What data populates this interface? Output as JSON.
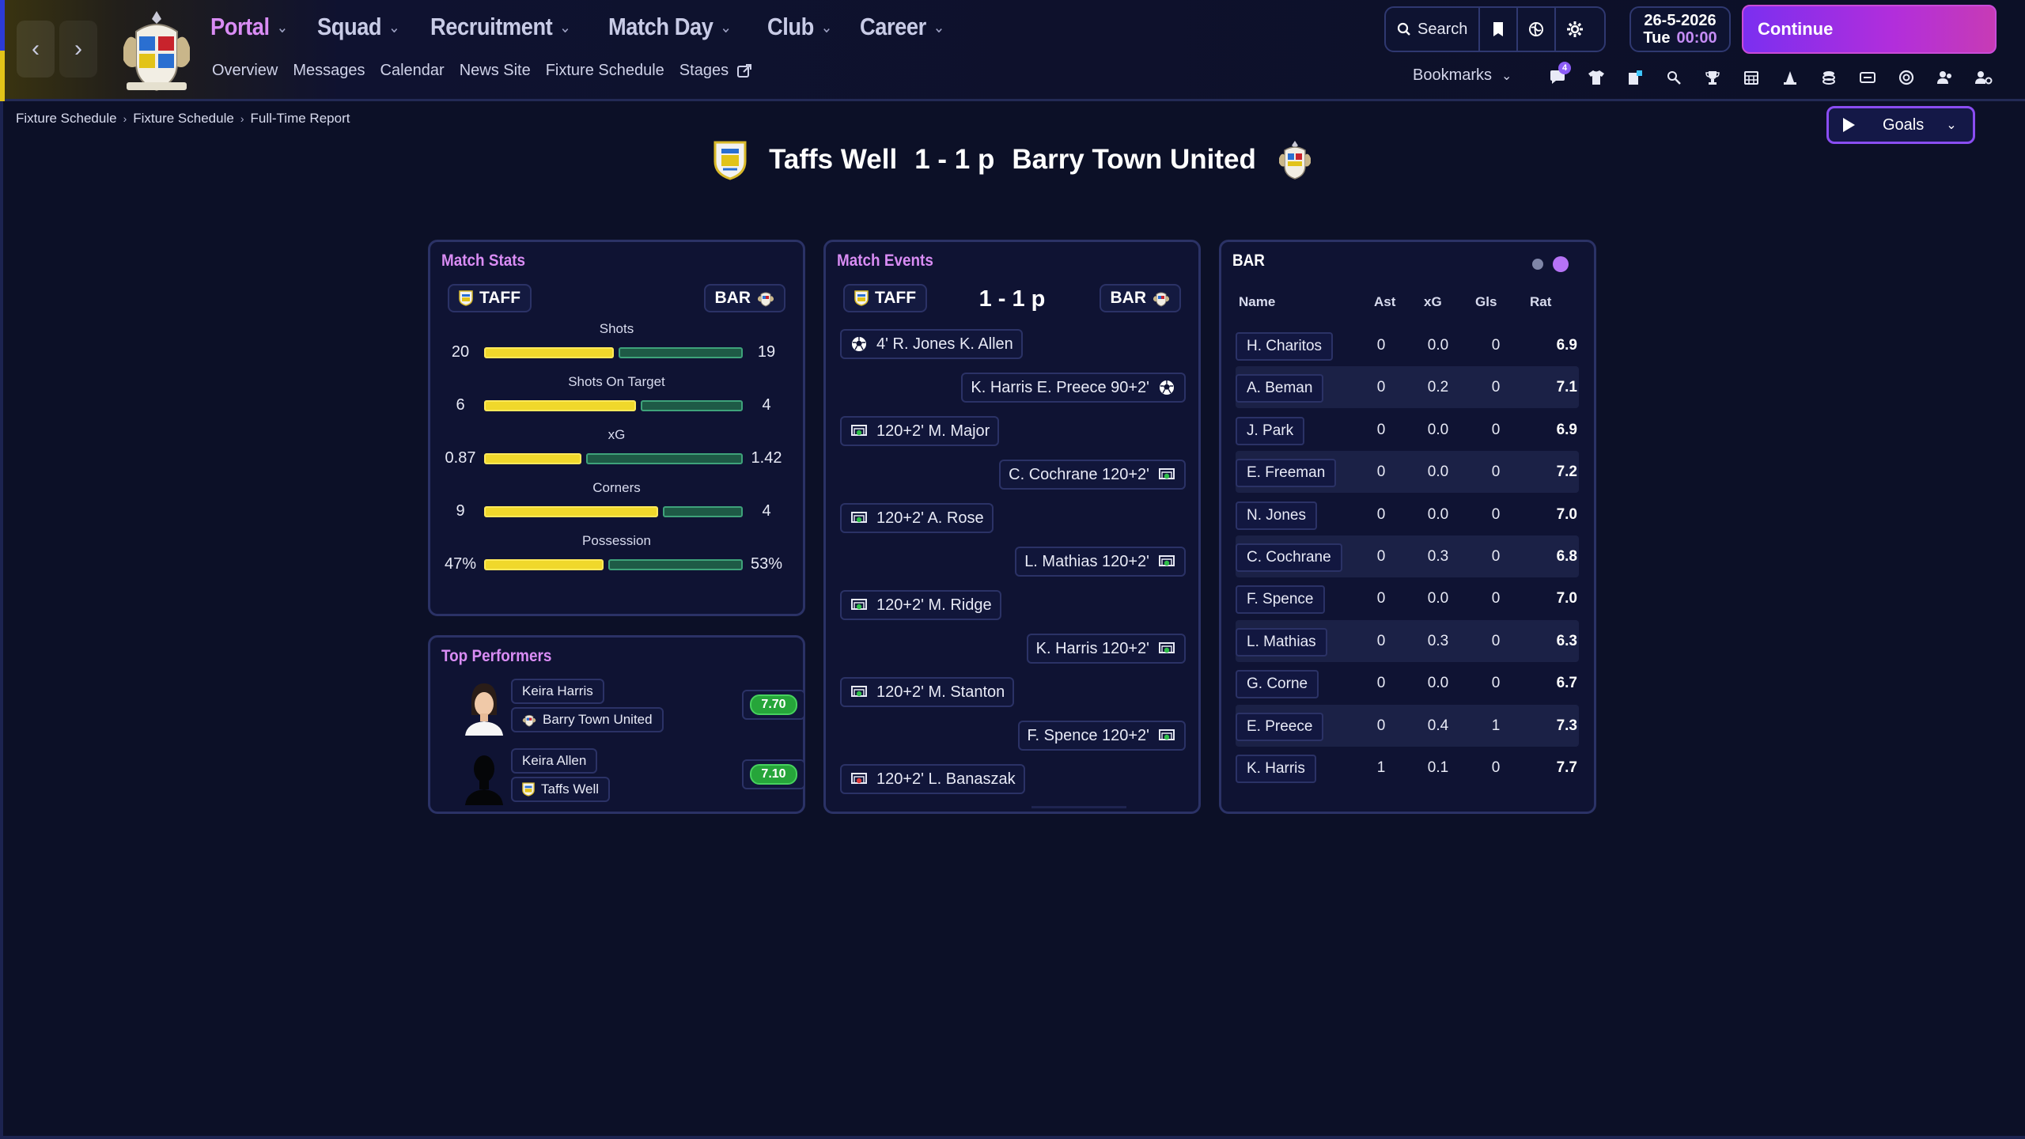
{
  "nav": {
    "main": [
      {
        "label": "Portal",
        "active": true
      },
      {
        "label": "Squad",
        "active": false
      },
      {
        "label": "Recruitment",
        "active": false
      },
      {
        "label": "Match Day",
        "active": false
      },
      {
        "label": "Club",
        "active": false
      },
      {
        "label": "Career",
        "active": false
      }
    ],
    "sub": [
      "Overview",
      "Messages",
      "Calendar",
      "News Site",
      "Fixture Schedule",
      "Stages"
    ],
    "search_label": "Search",
    "date": "26-5-2026",
    "day": "Tue",
    "time": "00:00",
    "continue_label": "Continue",
    "bookmarks_label": "Bookmarks",
    "inbox_badge": "4"
  },
  "breadcrumb": [
    "Fixture Schedule",
    "Fixture Schedule",
    "Full-Time Report"
  ],
  "goals_dropdown": "Goals",
  "match": {
    "home_team": "Taffs Well",
    "away_team": "Barry Town United",
    "score": "1 - 1 p",
    "home_short": "TAFF",
    "away_short": "BAR"
  },
  "match_stats": {
    "title": "Match Stats",
    "stats": [
      {
        "label": "Shots",
        "home": "20",
        "away": "19",
        "home_share": 0.51
      },
      {
        "label": "Shots On Target",
        "home": "6",
        "away": "4",
        "home_share": 0.6
      },
      {
        "label": "xG",
        "home": "0.87",
        "away": "1.42",
        "home_share": 0.38
      },
      {
        "label": "Corners",
        "home": "9",
        "away": "4",
        "home_share": 0.69
      },
      {
        "label": "Possession",
        "home": "47%",
        "away": "53%",
        "home_share": 0.47
      }
    ]
  },
  "top_performers": {
    "title": "Top Performers",
    "players": [
      {
        "name": "Keira Harris",
        "club": "Barry Town United",
        "rating": "7.70"
      },
      {
        "name": "Keira Allen",
        "club": "Taffs Well",
        "rating": "7.10"
      }
    ]
  },
  "match_events": {
    "title": "Match Events",
    "events": [
      {
        "side": "home",
        "type": "goal",
        "text": "4' R. Jones K. Allen"
      },
      {
        "side": "away",
        "type": "goal",
        "text": "K. Harris E. Preece 90+2'"
      },
      {
        "side": "home",
        "type": "pen-scored",
        "text": "120+2' M. Major"
      },
      {
        "side": "away",
        "type": "pen-scored",
        "text": "C. Cochrane 120+2'"
      },
      {
        "side": "home",
        "type": "pen-scored",
        "text": "120+2' A. Rose"
      },
      {
        "side": "away",
        "type": "pen-scored",
        "text": "L. Mathias 120+2'"
      },
      {
        "side": "home",
        "type": "pen-scored",
        "text": "120+2' M. Ridge"
      },
      {
        "side": "away",
        "type": "pen-scored",
        "text": "K. Harris 120+2'"
      },
      {
        "side": "home",
        "type": "pen-scored",
        "text": "120+2' M. Stanton"
      },
      {
        "side": "away",
        "type": "pen-scored",
        "text": "F. Spence 120+2'"
      },
      {
        "side": "home",
        "type": "pen-missed",
        "text": "120+2' L. Banaszak"
      }
    ]
  },
  "player_table": {
    "title": "BAR",
    "columns": [
      "Name",
      "Ast",
      "xG",
      "Gls",
      "Rat"
    ],
    "rows": [
      {
        "name": "H. Charitos",
        "ast": "0",
        "xg": "0.0",
        "gls": "0",
        "rat": "6.9"
      },
      {
        "name": "A. Beman",
        "ast": "0",
        "xg": "0.2",
        "gls": "0",
        "rat": "7.1"
      },
      {
        "name": "J. Park",
        "ast": "0",
        "xg": "0.0",
        "gls": "0",
        "rat": "6.9"
      },
      {
        "name": "E. Freeman",
        "ast": "0",
        "xg": "0.0",
        "gls": "0",
        "rat": "7.2"
      },
      {
        "name": "N. Jones",
        "ast": "0",
        "xg": "0.0",
        "gls": "0",
        "rat": "7.0"
      },
      {
        "name": "C. Cochrane",
        "ast": "0",
        "xg": "0.3",
        "gls": "0",
        "rat": "6.8"
      },
      {
        "name": "F. Spence",
        "ast": "0",
        "xg": "0.0",
        "gls": "0",
        "rat": "7.0"
      },
      {
        "name": "L. Mathias",
        "ast": "0",
        "xg": "0.3",
        "gls": "0",
        "rat": "6.3"
      },
      {
        "name": "G. Corne",
        "ast": "0",
        "xg": "0.0",
        "gls": "0",
        "rat": "6.7"
      },
      {
        "name": "E. Preece",
        "ast": "0",
        "xg": "0.4",
        "gls": "1",
        "rat": "7.3"
      },
      {
        "name": "K. Harris",
        "ast": "1",
        "xg": "0.1",
        "gls": "0",
        "rat": "7.7"
      }
    ]
  },
  "colors": {
    "accent": "#d98cf4",
    "home_bar": "#f0d82b",
    "away_bar": "#1e5a46",
    "rating_badge": "#26a53a",
    "continue": "#9b30e6"
  }
}
